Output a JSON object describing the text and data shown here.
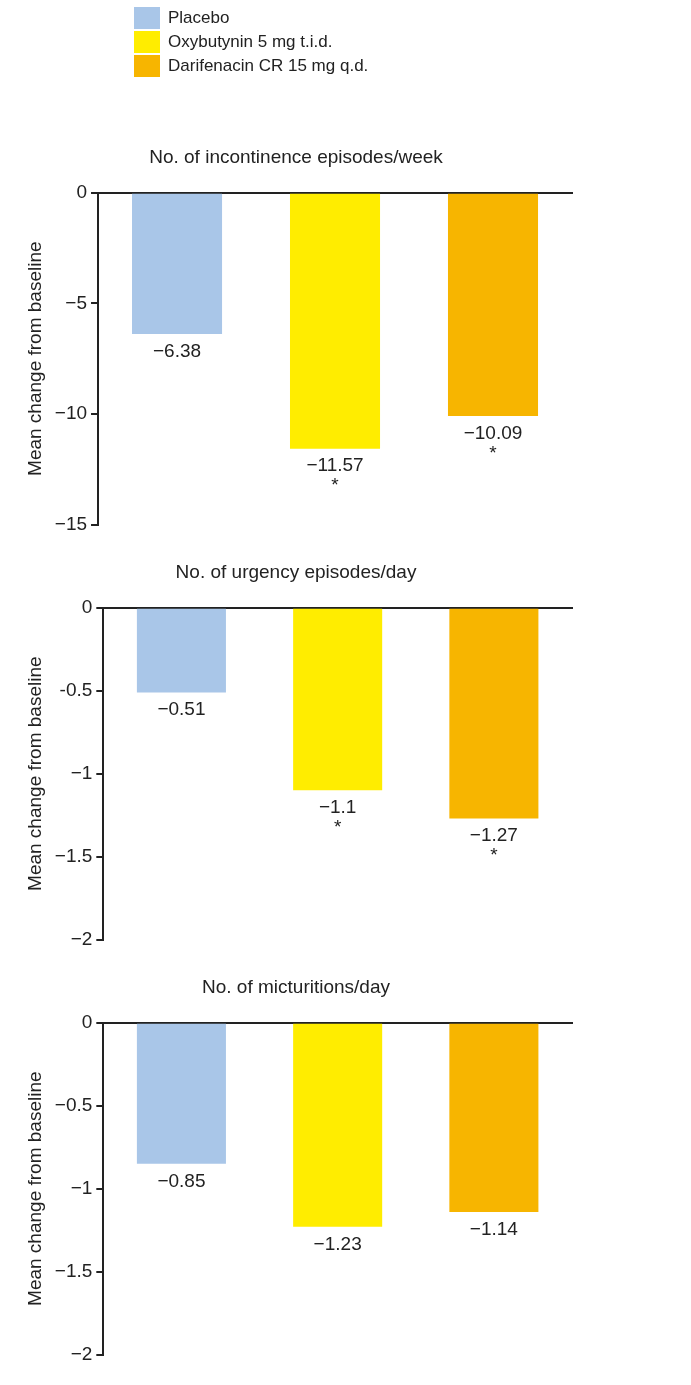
{
  "chart_data": [
    {
      "type": "bar",
      "title": "No. of incontinence episodes/week",
      "ylabel": "Mean change from baseline",
      "categories": [
        null
      ],
      "legend": "top left",
      "series": [
        {
          "name": "Placebo",
          "color": "#a9c6e8",
          "values": [
            -6.38
          ],
          "value_labels": [
            "−6.38"
          ]
        },
        {
          "name": "Oxybutynin 5 mg t.i.d.",
          "color": "#ffed00",
          "values": [
            -11.57
          ],
          "value_labels": [
            "−11.57\n*"
          ]
        },
        {
          "name": "Darifenacin CR 15 mg q.d.",
          "color": "#f7b500",
          "values": [
            -10.09
          ],
          "value_labels": [
            "−10.09\n*"
          ]
        }
      ],
      "ylim": [
        -15,
        0
      ],
      "yticks": [
        {
          "value": 0,
          "label": "0"
        },
        {
          "value": -5,
          "label": "−5"
        },
        {
          "value": -10,
          "label": "−10"
        },
        {
          "value": -15,
          "label": "−15"
        }
      ],
      "grid": false,
      "tick_labels": "y"
    },
    {
      "type": "bar",
      "title": "No. of urgency episodes/day",
      "ylabel": "Mean change from baseline",
      "categories": [
        null
      ],
      "legend": false,
      "series": [
        {
          "color": "#a9c6e8",
          "values": [
            -0.51
          ],
          "value_labels": [
            "−0.51"
          ]
        },
        {
          "color": "#ffed00",
          "values": [
            -1.1
          ],
          "value_labels": [
            "−1.1\n*"
          ]
        },
        {
          "color": "#f7b500",
          "values": [
            -1.27
          ],
          "value_labels": [
            "−1.27\n*"
          ]
        }
      ],
      "ylim": [
        -2,
        0
      ],
      "yticks": [
        {
          "value": 0,
          "label": "0"
        },
        {
          "value": -0.5,
          "label": "-0.5"
        },
        {
          "value": -1,
          "label": "−1"
        },
        {
          "value": -1.5,
          "label": "−1.5"
        },
        {
          "value": -2,
          "label": "−2"
        }
      ],
      "grid": false,
      "tick_labels": "y"
    },
    {
      "type": "bar",
      "title": "No. of micturitions/day",
      "ylabel": "Mean change from baseline",
      "categories": [
        null
      ],
      "legend": false,
      "series": [
        {
          "color": "#a9c6e8",
          "values": [
            -0.85
          ],
          "value_labels": [
            "−0.85"
          ]
        },
        {
          "color": "#ffed00",
          "values": [
            -1.23
          ],
          "value_labels": [
            "−1.23"
          ]
        },
        {
          "color": "#f7b500",
          "values": [
            -1.14
          ],
          "value_labels": [
            "−1.14"
          ]
        }
      ],
      "ylim": [
        -2,
        0
      ],
      "yticks": [
        {
          "value": 0,
          "label": "0"
        },
        {
          "value": -0.5,
          "label": "−0.5"
        },
        {
          "value": -1,
          "label": "−1"
        },
        {
          "value": -1.5,
          "label": "−1.5"
        },
        {
          "value": -2,
          "label": "−2"
        }
      ],
      "grid": false,
      "tick_labels": "y"
    }
  ]
}
